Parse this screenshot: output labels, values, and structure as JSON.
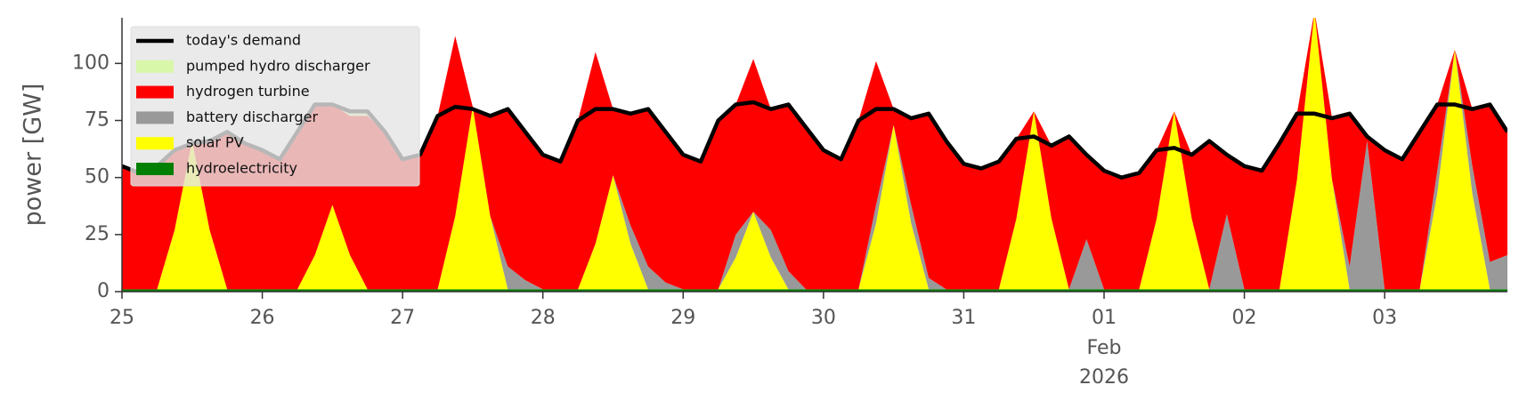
{
  "chart_data": {
    "type": "stacked_area",
    "y_label": "power [GW]",
    "x": [
      "2026-01-25T00:00",
      "2026-01-25T03:00",
      "2026-01-25T06:00",
      "2026-01-25T09:00",
      "2026-01-25T12:00",
      "2026-01-25T15:00",
      "2026-01-25T18:00",
      "2026-01-25T21:00",
      "2026-01-26T00:00",
      "2026-01-26T03:00",
      "2026-01-26T06:00",
      "2026-01-26T09:00",
      "2026-01-26T12:00",
      "2026-01-26T15:00",
      "2026-01-26T18:00",
      "2026-01-26T21:00",
      "2026-01-27T00:00",
      "2026-01-27T03:00",
      "2026-01-27T06:00",
      "2026-01-27T09:00",
      "2026-01-27T12:00",
      "2026-01-27T15:00",
      "2026-01-27T18:00",
      "2026-01-27T21:00",
      "2026-01-28T00:00",
      "2026-01-28T03:00",
      "2026-01-28T06:00",
      "2026-01-28T09:00",
      "2026-01-28T12:00",
      "2026-01-28T15:00",
      "2026-01-28T18:00",
      "2026-01-28T21:00",
      "2026-01-29T00:00",
      "2026-01-29T03:00",
      "2026-01-29T06:00",
      "2026-01-29T09:00",
      "2026-01-29T12:00",
      "2026-01-29T15:00",
      "2026-01-29T18:00",
      "2026-01-29T21:00",
      "2026-01-30T00:00",
      "2026-01-30T03:00",
      "2026-01-30T06:00",
      "2026-01-30T09:00",
      "2026-01-30T12:00",
      "2026-01-30T15:00",
      "2026-01-30T18:00",
      "2026-01-30T21:00",
      "2026-01-31T00:00",
      "2026-01-31T03:00",
      "2026-01-31T06:00",
      "2026-01-31T09:00",
      "2026-01-31T12:00",
      "2026-01-31T15:00",
      "2026-01-31T18:00",
      "2026-01-31T21:00",
      "2026-02-01T00:00",
      "2026-02-01T03:00",
      "2026-02-01T06:00",
      "2026-02-01T09:00",
      "2026-02-01T12:00",
      "2026-02-01T15:00",
      "2026-02-01T18:00",
      "2026-02-01T21:00",
      "2026-02-02T00:00",
      "2026-02-02T03:00",
      "2026-02-02T06:00",
      "2026-02-02T09:00",
      "2026-02-02T12:00",
      "2026-02-02T15:00",
      "2026-02-02T18:00",
      "2026-02-02T21:00",
      "2026-02-03T00:00",
      "2026-02-03T03:00",
      "2026-02-03T06:00",
      "2026-02-03T09:00",
      "2026-02-03T12:00",
      "2026-02-03T15:00",
      "2026-02-03T18:00",
      "2026-02-03T21:00"
    ],
    "series": [
      {
        "name": "today's demand",
        "kind": "line",
        "color": "#000000",
        "values": [
          55,
          52,
          55,
          62,
          65,
          66,
          70,
          65,
          62,
          58,
          70,
          82,
          82,
          79,
          79,
          70,
          58,
          60,
          77,
          81,
          80,
          77,
          80,
          70,
          60,
          57,
          75,
          80,
          80,
          78,
          80,
          70,
          60,
          57,
          75,
          82,
          83,
          80,
          82,
          72,
          62,
          58,
          75,
          80,
          80,
          76,
          78,
          66,
          56,
          54,
          57,
          67,
          68,
          64,
          68,
          60,
          53,
          50,
          52,
          62,
          63,
          60,
          66,
          60,
          55,
          53,
          65,
          78,
          78,
          76,
          78,
          68,
          62,
          58,
          70,
          82,
          82,
          80,
          82,
          70
        ]
      },
      {
        "name": "pumped hydro discharger",
        "kind": "area",
        "color": "#d9f7a8",
        "values": [
          0,
          0,
          0,
          0,
          0,
          0,
          0,
          0,
          0,
          0,
          0,
          0,
          0,
          2,
          2,
          0,
          0,
          0,
          0,
          0,
          0,
          0,
          0,
          0,
          0,
          0,
          0,
          0,
          0,
          0,
          0,
          0,
          0,
          0,
          0,
          0,
          0,
          0,
          0,
          0,
          0,
          0,
          0,
          0,
          0,
          0,
          0,
          0,
          0,
          0,
          0,
          0,
          0,
          0,
          0,
          0,
          0,
          0,
          0,
          0,
          0,
          0,
          0,
          0,
          0,
          0,
          0,
          0,
          0,
          0,
          0,
          0,
          0,
          0,
          0,
          0,
          0,
          0,
          0,
          0
        ]
      },
      {
        "name": "hydrogen turbine",
        "kind": "area",
        "color": "#ff0000",
        "values": [
          54,
          51,
          54,
          35,
          0,
          39,
          69,
          64,
          61,
          57,
          69,
          66,
          44,
          61,
          76,
          69,
          57,
          59,
          76,
          79,
          0,
          44,
          69,
          65,
          59,
          56,
          74,
          84,
          29,
          49,
          69,
          66,
          59,
          56,
          74,
          57,
          67,
          53,
          73,
          71,
          61,
          57,
          74,
          63,
          7,
          38,
          72,
          65,
          55,
          53,
          56,
          35,
          0,
          32,
          67,
          37,
          52,
          49,
          51,
          30,
          0,
          28,
          65,
          26,
          54,
          52,
          64,
          29,
          0,
          27,
          67,
          2,
          61,
          57,
          69,
          29,
          0,
          25,
          69,
          54
        ]
      },
      {
        "name": "battery discharger",
        "kind": "area",
        "color": "#999999",
        "values": [
          0,
          0,
          0,
          0,
          0,
          0,
          0,
          0,
          0,
          0,
          0,
          0,
          0,
          0,
          0,
          0,
          0,
          0,
          0,
          0,
          0,
          0,
          10,
          4,
          0,
          0,
          0,
          0,
          0,
          8,
          10,
          3,
          0,
          0,
          0,
          10,
          0,
          12,
          8,
          0,
          0,
          0,
          0,
          8,
          0,
          8,
          5,
          0,
          0,
          0,
          0,
          0,
          0,
          0,
          0,
          22,
          0,
          0,
          0,
          0,
          0,
          0,
          0,
          33,
          0,
          0,
          0,
          0,
          0,
          0,
          10,
          65,
          0,
          0,
          0,
          10,
          0,
          12,
          12,
          15
        ]
      },
      {
        "name": "solar PV",
        "kind": "area",
        "color": "#ffff00",
        "values": [
          0,
          0,
          0,
          26,
          65,
          26,
          0,
          0,
          0,
          0,
          0,
          15,
          37,
          15,
          0,
          0,
          0,
          0,
          0,
          32,
          80,
          32,
          0,
          0,
          0,
          0,
          0,
          20,
          50,
          20,
          0,
          0,
          0,
          0,
          0,
          14,
          34,
          14,
          0,
          0,
          0,
          0,
          0,
          29,
          72,
          29,
          0,
          0,
          0,
          0,
          0,
          31,
          78,
          31,
          0,
          0,
          0,
          0,
          0,
          31,
          78,
          31,
          0,
          0,
          0,
          0,
          0,
          48,
          122,
          48,
          0,
          0,
          0,
          0,
          0,
          42,
          105,
          42,
          0,
          0
        ]
      },
      {
        "name": "hydroelectricity",
        "kind": "area",
        "color": "#008000",
        "values": [
          1,
          1,
          1,
          1,
          1,
          1,
          1,
          1,
          1,
          1,
          1,
          1,
          1,
          1,
          1,
          1,
          1,
          1,
          1,
          1,
          1,
          1,
          1,
          1,
          1,
          1,
          1,
          1,
          1,
          1,
          1,
          1,
          1,
          1,
          1,
          1,
          1,
          1,
          1,
          1,
          1,
          1,
          1,
          1,
          1,
          1,
          1,
          1,
          1,
          1,
          1,
          1,
          1,
          1,
          1,
          1,
          1,
          1,
          1,
          1,
          1,
          1,
          1,
          1,
          1,
          1,
          1,
          1,
          1,
          1,
          1,
          1,
          1,
          1,
          1,
          1,
          1,
          1,
          1,
          1
        ]
      }
    ],
    "xlim": [
      "2026-01-25T00:00",
      "2026-02-03T21:00"
    ],
    "xticks": [
      {
        "value": "2026-01-25T00:00",
        "label": "25"
      },
      {
        "value": "2026-01-26T00:00",
        "label": "26"
      },
      {
        "value": "2026-01-27T00:00",
        "label": "27"
      },
      {
        "value": "2026-01-28T00:00",
        "label": "28"
      },
      {
        "value": "2026-01-29T00:00",
        "label": "29"
      },
      {
        "value": "2026-01-30T00:00",
        "label": "30"
      },
      {
        "value": "2026-01-31T00:00",
        "label": "31"
      },
      {
        "value": "2026-02-01T00:00",
        "label": "01",
        "sublabels": [
          "Feb",
          "2026"
        ]
      },
      {
        "value": "2026-02-02T00:00",
        "label": "02"
      },
      {
        "value": "2026-02-03T00:00",
        "label": "03"
      }
    ],
    "ylim": [
      0,
      120
    ],
    "yticks": [
      0,
      25,
      50,
      75,
      100
    ],
    "legend": "upper left"
  }
}
